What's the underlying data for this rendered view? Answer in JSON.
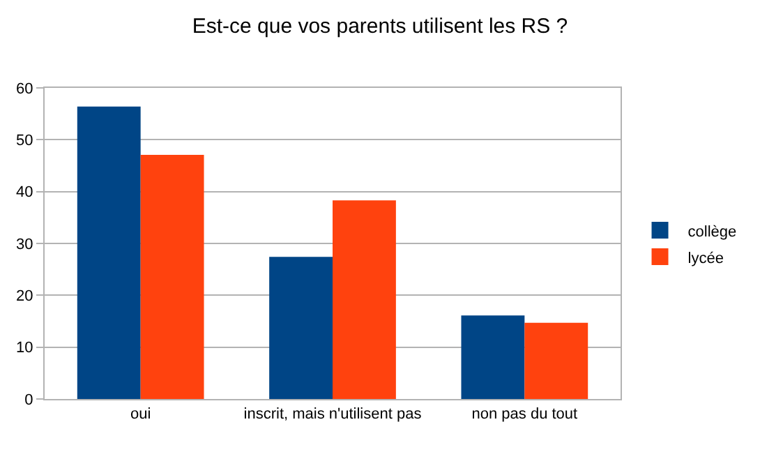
{
  "chart_data": {
    "type": "bar",
    "title": "Est-ce que vos parents utilisent les RS ?",
    "categories": [
      "oui",
      "inscrit, mais n'utilisent pas",
      "non pas du tout"
    ],
    "series": [
      {
        "name": "collège",
        "color": "#004586",
        "values": [
          56.4,
          27.4,
          16.1
        ]
      },
      {
        "name": "lycée",
        "color": "#ff420e",
        "values": [
          47.1,
          38.3,
          14.7
        ]
      }
    ],
    "ylim": [
      0,
      60
    ],
    "yticks": [
      0,
      10,
      20,
      30,
      40,
      50,
      60
    ],
    "grid": "y",
    "legend": "right"
  }
}
